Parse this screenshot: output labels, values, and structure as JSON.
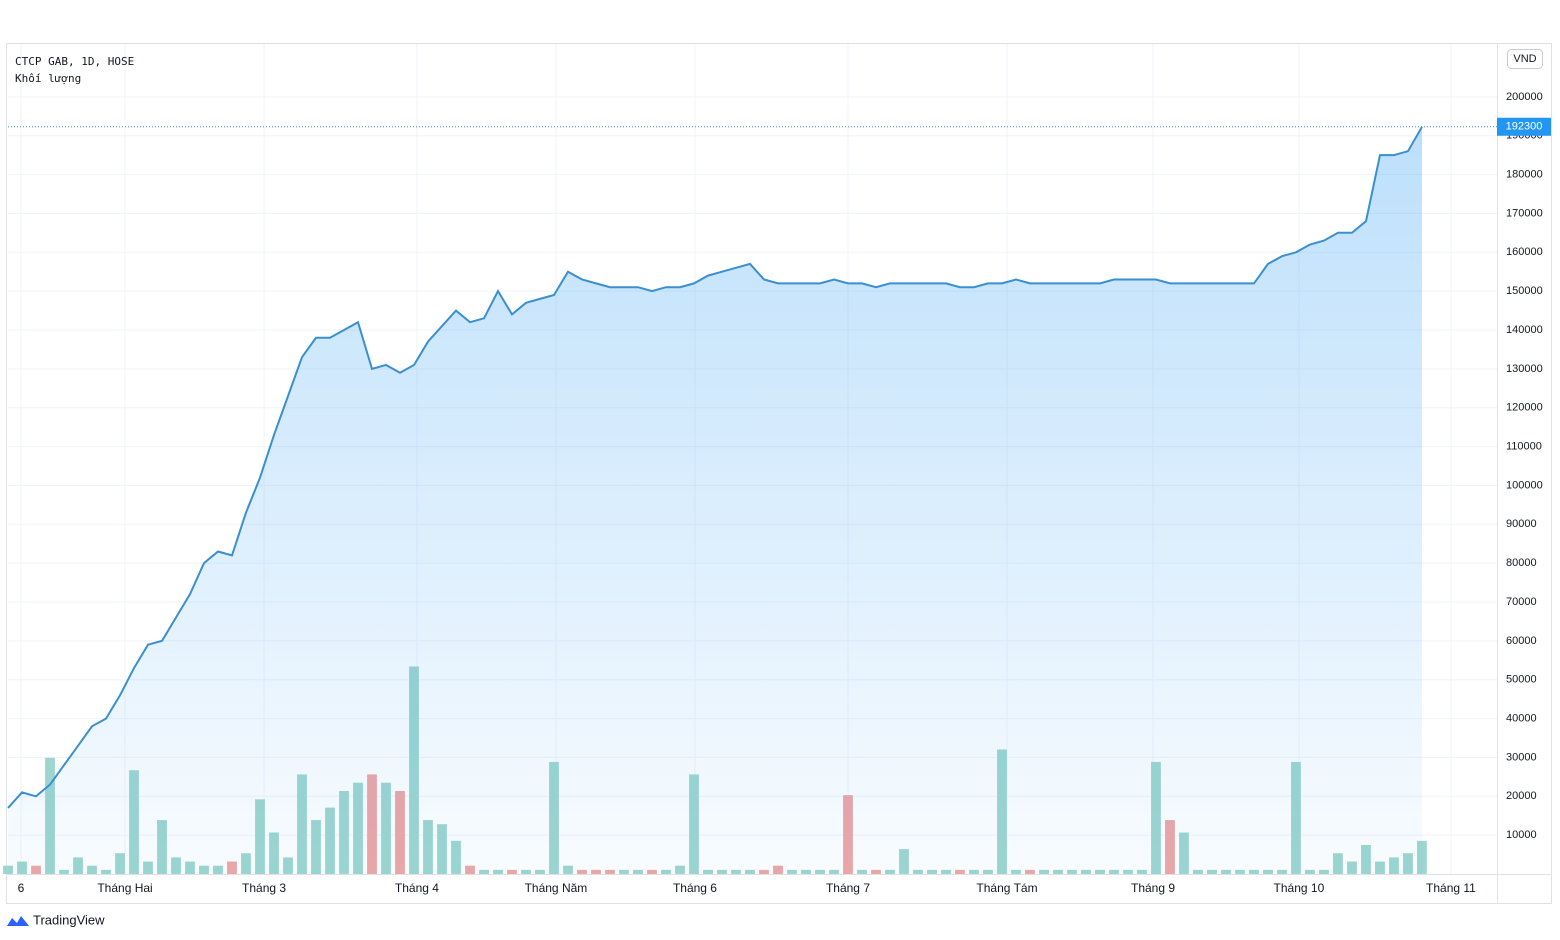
{
  "chart_data": {
    "type": "area",
    "title": "CTCP GAB, 1D, HOSE",
    "subtitle": "Khối lượng",
    "currency": "VND",
    "brand": "TradingView",
    "color": "#3a8fd0",
    "values": [
      17000,
      21000,
      20000,
      23000,
      28000,
      33000,
      38000,
      40000,
      46000,
      53000,
      59000,
      60000,
      66000,
      72000,
      80000,
      83000,
      82000,
      93000,
      102000,
      113000,
      123000,
      133000,
      138000,
      138000,
      140000,
      142000,
      130000,
      131000,
      129000,
      131000,
      137000,
      141000,
      145000,
      142000,
      143000,
      150000,
      144000,
      147000,
      148000,
      149000,
      155000,
      153000,
      152000,
      151000,
      151000,
      151000,
      150000,
      151000,
      151000,
      152000,
      154000,
      155000,
      156000,
      157000,
      153000,
      152000,
      152000,
      152000,
      152000,
      153000,
      152000,
      152000,
      151000,
      152000,
      152000,
      152000,
      152000,
      152000,
      151000,
      151000,
      152000,
      152000,
      153000,
      152000,
      152000,
      152000,
      152000,
      152000,
      152000,
      153000,
      153000,
      153000,
      153000,
      152000,
      152000,
      152000,
      152000,
      152000,
      152000,
      152000,
      157000,
      159000,
      160000,
      162000,
      163000,
      165000,
      165000,
      168000,
      185000,
      185000,
      186000,
      192300
    ],
    "volume": {
      "values": [
        2,
        3,
        2,
        28,
        1,
        4,
        2,
        1,
        5,
        25,
        3,
        13,
        4,
        3,
        2,
        2,
        3,
        5,
        18,
        10,
        4,
        24,
        13,
        16,
        20,
        22,
        24,
        22,
        20,
        50,
        13,
        12,
        8,
        2,
        1,
        1,
        1,
        1,
        1,
        27,
        2,
        1,
        1,
        1,
        1,
        1,
        1,
        1,
        2,
        24,
        1,
        1,
        1,
        1,
        1,
        2,
        1,
        1,
        1,
        1,
        19,
        1,
        1,
        1,
        6,
        1,
        1,
        1,
        1,
        1,
        1,
        30,
        1,
        1,
        1,
        1,
        1,
        1,
        1,
        1,
        1,
        1,
        27,
        13,
        10,
        1,
        1,
        1,
        1,
        1,
        1,
        1,
        27,
        1,
        1,
        5,
        3,
        7,
        3,
        4,
        5,
        8
      ],
      "up_color": "#9ed6cf",
      "down_color": "#eea6a6",
      "ylim": [
        0,
        200
      ]
    },
    "xlim": [
      0,
      106.36
    ],
    "xticks": [
      {
        "value": 0.93,
        "label": "6"
      },
      {
        "value": 8.36,
        "label": "Tháng Hai"
      },
      {
        "value": 18.29,
        "label": "Tháng 3"
      },
      {
        "value": 29.21,
        "label": "Tháng 4"
      },
      {
        "value": 39.14,
        "label": "Tháng Năm"
      },
      {
        "value": 49.07,
        "label": "Tháng 6"
      },
      {
        "value": 60,
        "label": "Tháng 7"
      },
      {
        "value": 71.36,
        "label": "Tháng Tám"
      },
      {
        "value": 81.79,
        "label": "Tháng 9"
      },
      {
        "value": 92.21,
        "label": "Tháng 10"
      },
      {
        "value": 103.07,
        "label": "Tháng 11"
      }
    ],
    "ylim": [
      0,
      213600
    ],
    "yticks": [
      10000,
      20000,
      30000,
      40000,
      50000,
      60000,
      70000,
      80000,
      90000,
      100000,
      110000,
      120000,
      130000,
      140000,
      150000,
      160000,
      170000,
      180000,
      190000,
      200000
    ],
    "grid": true
  }
}
